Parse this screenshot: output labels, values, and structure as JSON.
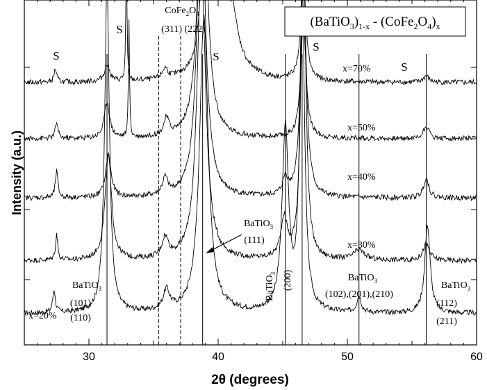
{
  "chart_data": {
    "type": "line",
    "title": "(BaTiO3)1-x - (CoFe2O4)x",
    "xlabel": "2θ (degrees)",
    "ylabel": "Intensity (a.u.)",
    "xlim": [
      25,
      60
    ],
    "x_ticks": [
      30,
      40,
      50,
      60
    ],
    "x_tick_labels": [
      "30",
      "40",
      "50",
      "60"
    ],
    "y_ticks_labeled": false,
    "legend": "none",
    "series": [
      {
        "name": "x=20%",
        "baseline": 0.07,
        "peaks": [
          [
            27.3,
            0.07,
            0.12
          ],
          [
            31.4,
            1.0,
            0.22
          ],
          [
            36.0,
            0.06,
            0.3
          ],
          [
            38.9,
            0.9,
            0.4
          ],
          [
            45.2,
            0.55,
            0.3
          ],
          [
            46.5,
            1.0,
            0.22
          ],
          [
            50.9,
            0.05,
            0.2
          ],
          [
            56.2,
            0.27,
            0.25
          ]
        ]
      },
      {
        "name": "x=30%",
        "baseline": 0.23,
        "peaks": [
          [
            27.5,
            0.08,
            0.1
          ],
          [
            31.5,
            0.32,
            0.3
          ],
          [
            35.9,
            0.06,
            0.3
          ],
          [
            38.7,
            0.9,
            0.4
          ],
          [
            45.1,
            0.12,
            0.3
          ],
          [
            46.6,
            1.0,
            0.22
          ],
          [
            50.9,
            0.03,
            0.5
          ],
          [
            56.1,
            0.05,
            0.3
          ]
        ]
      },
      {
        "name": "x=40%",
        "baseline": 0.42,
        "peaks": [
          [
            27.5,
            0.08,
            0.12
          ],
          [
            31.5,
            0.13,
            0.25
          ],
          [
            35.9,
            0.05,
            0.25
          ],
          [
            38.7,
            0.9,
            0.4
          ],
          [
            45.2,
            0.05,
            0.25
          ],
          [
            46.6,
            0.7,
            0.25
          ],
          [
            56.1,
            0.06,
            0.25
          ]
        ]
      },
      {
        "name": "x=50%",
        "baseline": 0.6,
        "peaks": [
          [
            27.5,
            0.05,
            0.12
          ],
          [
            31.4,
            0.11,
            0.25
          ],
          [
            33.1,
            0.35,
            0.05
          ],
          [
            36.0,
            0.05,
            0.25
          ],
          [
            38.8,
            0.9,
            0.4
          ],
          [
            46.6,
            0.35,
            0.25
          ],
          [
            56.1,
            0.04,
            0.25
          ]
        ]
      },
      {
        "name": "x=70%",
        "baseline": 0.77,
        "peaks": [
          [
            27.4,
            0.04,
            0.12
          ],
          [
            31.4,
            0.05,
            0.25
          ],
          [
            32.9,
            0.4,
            0.05
          ],
          [
            35.9,
            0.03,
            0.25
          ],
          [
            38.8,
            0.25,
            0.3
          ],
          [
            40.3,
            0.8,
            0.6
          ],
          [
            46.6,
            0.3,
            0.25
          ],
          [
            56.1,
            0.02,
            0.25
          ]
        ]
      }
    ],
    "reference_lines_solid": [
      31.4,
      38.8,
      45.2,
      46.5,
      50.9,
      56.1
    ],
    "reference_lines_dashed": [
      35.4,
      37.1
    ],
    "annotations": [
      {
        "text": "S",
        "x": 27.5
      },
      {
        "text": "S",
        "x": 33.2
      },
      {
        "text": "S",
        "x": 39.2
      },
      {
        "text": "S",
        "x": 47.2
      },
      {
        "text": "S",
        "x": 54.5
      },
      {
        "text": "CoFe2O4",
        "x": 36.5
      },
      {
        "text": "(311) (222)",
        "x": 36.5
      },
      {
        "text": "BaTiO3",
        "x": 43.0
      },
      {
        "text": "(111)",
        "x": 42.5
      },
      {
        "text": "BaTiO3",
        "x": 29.0
      },
      {
        "text": "(101)",
        "x": 29.0
      },
      {
        "text": "(110)",
        "x": 29.0
      },
      {
        "text": "x=20%",
        "x": 26.0
      },
      {
        "text": "BaTiO3",
        "x": 45.0
      },
      {
        "text": "(200)",
        "x": 46.0
      },
      {
        "text": "BaTiO3",
        "x": 51.0
      },
      {
        "text": "(102),(201),(210)",
        "x": 51.0
      },
      {
        "text": "BaTiO3",
        "x": 58.0
      },
      {
        "text": "(112)",
        "x": 57.5
      },
      {
        "text": "(211)",
        "x": 57.5
      },
      {
        "text": "x=30%",
        "x": 52.0
      },
      {
        "text": "x=40%",
        "x": 52.0
      },
      {
        "text": "x=50%",
        "x": 52.0
      },
      {
        "text": "x=70%",
        "x": 51.5
      }
    ]
  }
}
